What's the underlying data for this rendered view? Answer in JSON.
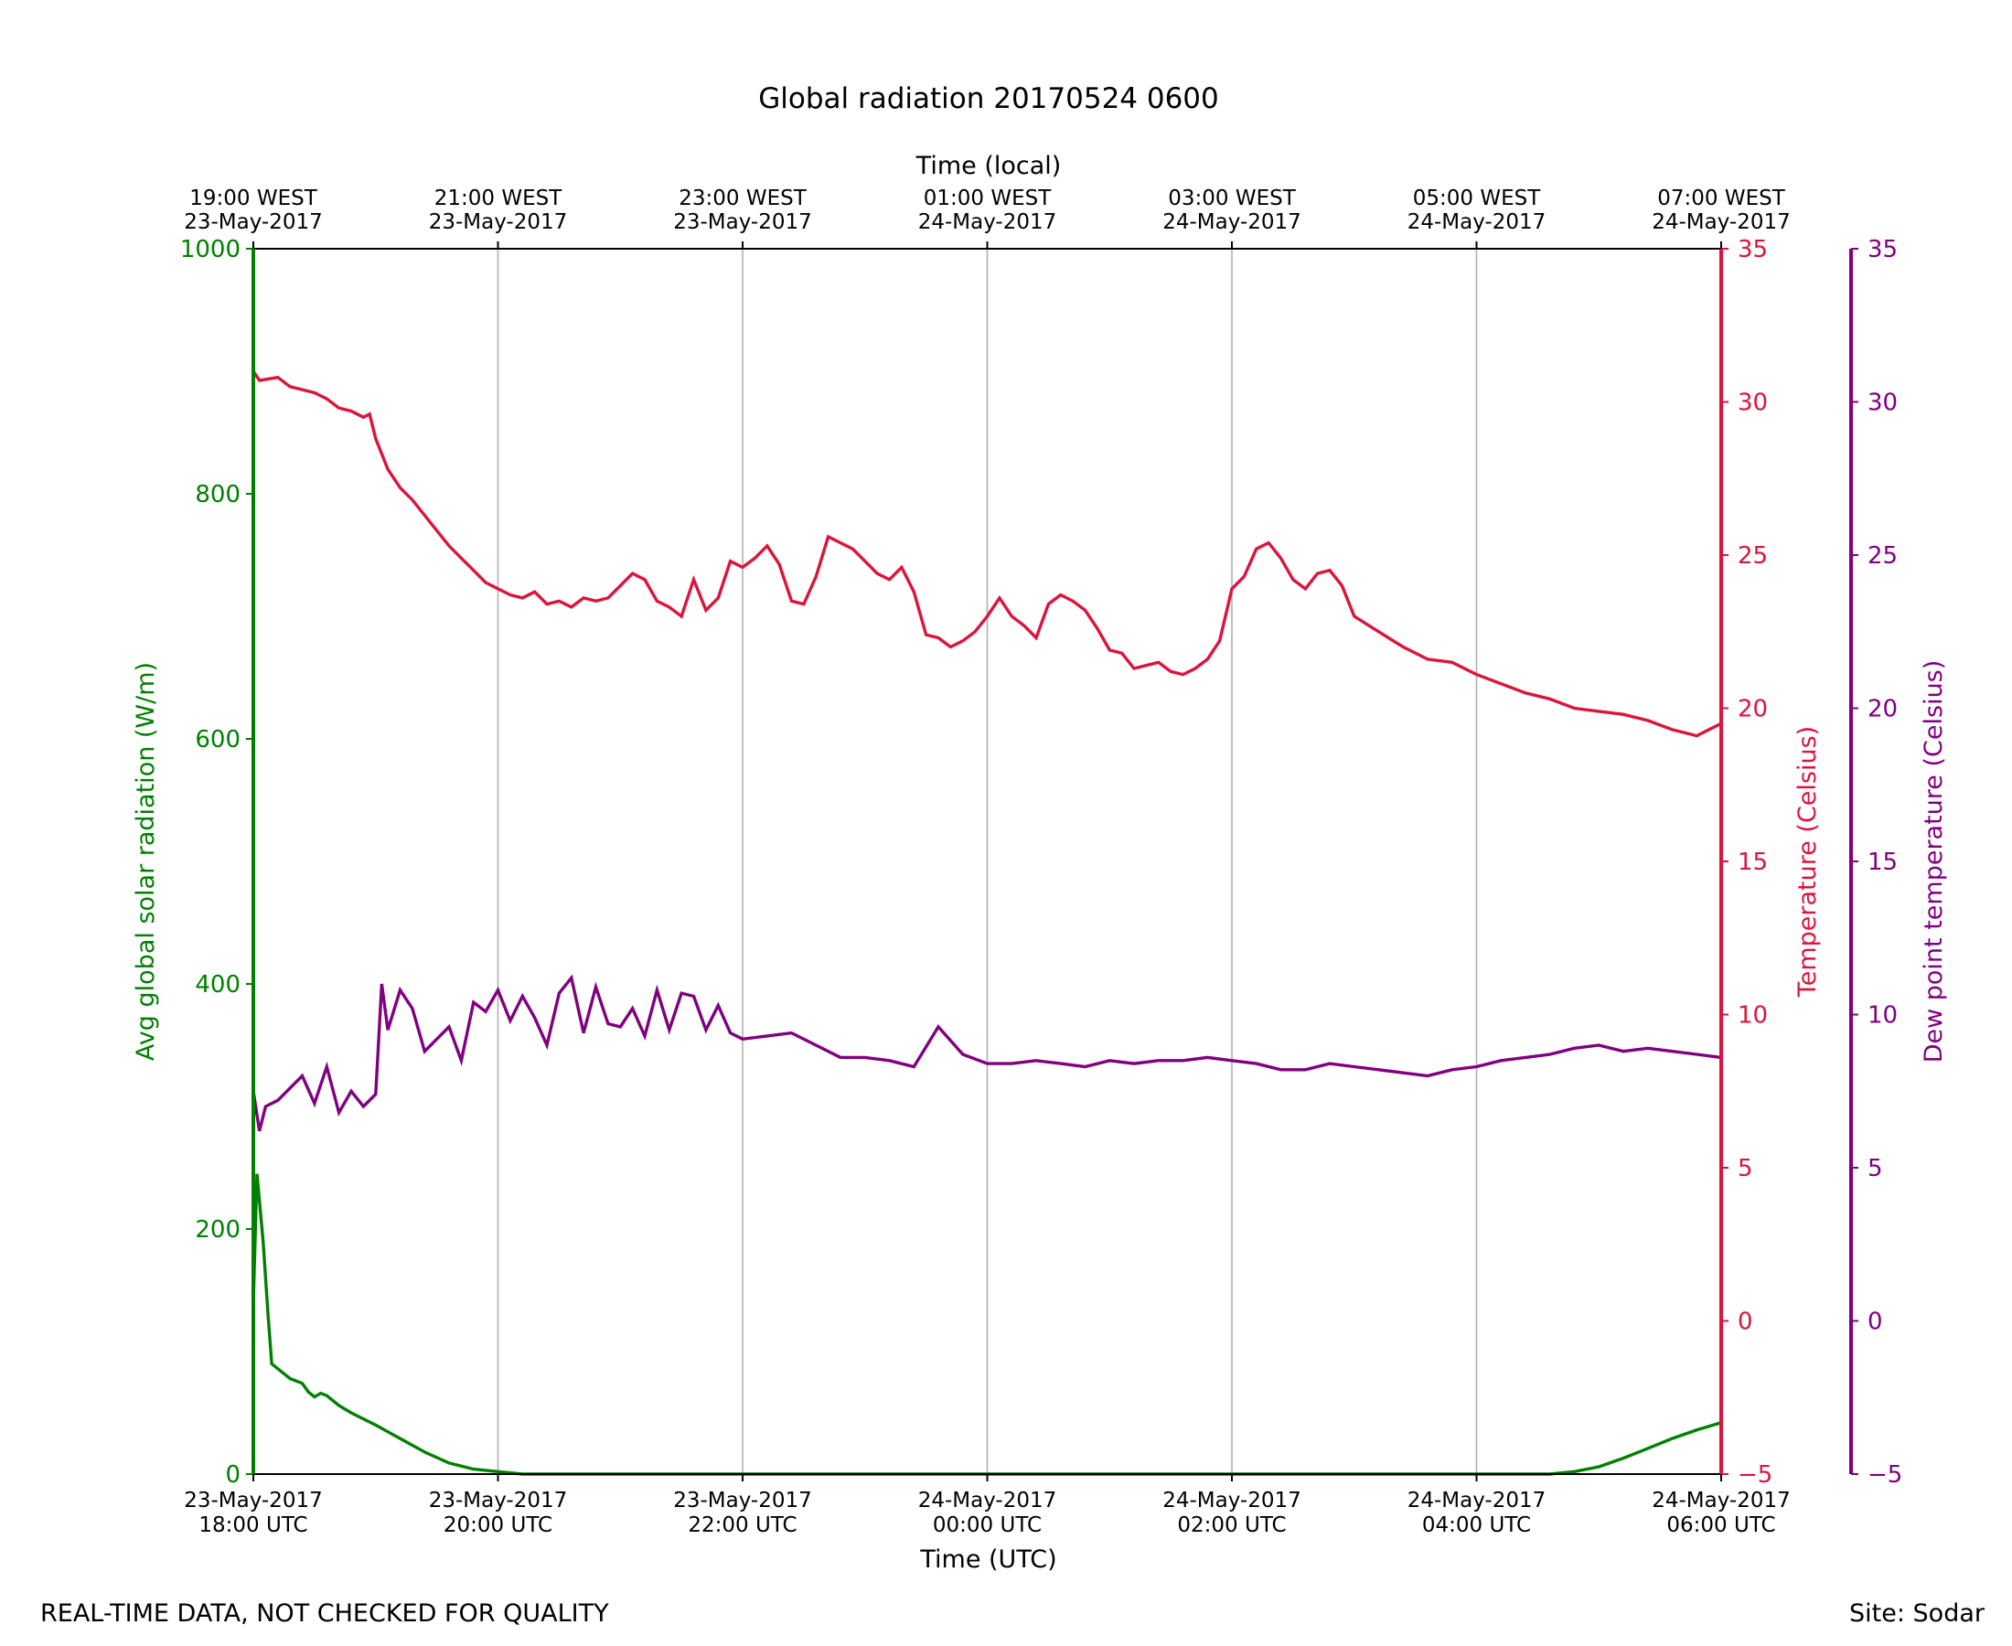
{
  "chart_data": {
    "type": "line",
    "title": "Global radiation 20170524 0600",
    "xlabel": "Time (UTC)",
    "x2label": "Time (local)",
    "xlim_hours": [
      0,
      12
    ],
    "x_ticks": [
      {
        "hour": 0,
        "utc_date": "23-May-2017",
        "utc_time": "18:00 UTC",
        "local_time": "19:00 WEST",
        "local_date": "23-May-2017"
      },
      {
        "hour": 2,
        "utc_date": "23-May-2017",
        "utc_time": "20:00 UTC",
        "local_time": "21:00 WEST",
        "local_date": "23-May-2017"
      },
      {
        "hour": 4,
        "utc_date": "23-May-2017",
        "utc_time": "22:00 UTC",
        "local_time": "23:00 WEST",
        "local_date": "23-May-2017"
      },
      {
        "hour": 6,
        "utc_date": "24-May-2017",
        "utc_time": "00:00 UTC",
        "local_time": "01:00 WEST",
        "local_date": "24-May-2017"
      },
      {
        "hour": 8,
        "utc_date": "24-May-2017",
        "utc_time": "02:00 UTC",
        "local_time": "03:00 WEST",
        "local_date": "24-May-2017"
      },
      {
        "hour": 10,
        "utc_date": "24-May-2017",
        "utc_time": "04:00 UTC",
        "local_time": "05:00 WEST",
        "local_date": "24-May-2017"
      },
      {
        "hour": 12,
        "utc_date": "24-May-2017",
        "utc_time": "06:00 UTC",
        "local_time": "07:00 WEST",
        "local_date": "24-May-2017"
      }
    ],
    "y_left": {
      "label": "Avg global solar radiation (W/m)",
      "ylim": [
        0,
        1000
      ],
      "ticks": [
        0,
        200,
        400,
        600,
        800,
        1000
      ],
      "color": "#008000"
    },
    "y_right": {
      "label": "Temperature (Celsius)",
      "ylim": [
        -5,
        35
      ],
      "ticks": [
        -5,
        0,
        5,
        10,
        15,
        20,
        25,
        30,
        35
      ],
      "color": "#dc143c"
    },
    "y_right2": {
      "label": "Dew point temperature (Celsius)",
      "ylim": [
        -5,
        35
      ],
      "ticks": [
        -5,
        0,
        5,
        10,
        15,
        20,
        25,
        30,
        35
      ],
      "color": "#800080"
    },
    "series": [
      {
        "name": "Global radiation",
        "axis": "left",
        "color": "#008000",
        "x": [
          0,
          0.03,
          0.08,
          0.12,
          0.15,
          0.3,
          0.4,
          0.45,
          0.5,
          0.55,
          0.6,
          0.65,
          0.7,
          0.75,
          0.8,
          1.0,
          1.2,
          1.4,
          1.6,
          1.8,
          2.0,
          2.2,
          2.5,
          3,
          4,
          5,
          6,
          7,
          8,
          9,
          10,
          10.6,
          10.8,
          11.0,
          11.2,
          11.4,
          11.6,
          11.8,
          12.0
        ],
        "values": [
          140,
          245,
          190,
          130,
          90,
          78,
          74,
          67,
          63,
          66,
          64,
          60,
          56,
          53,
          50,
          40,
          29,
          18,
          9,
          4,
          2,
          0,
          0,
          0,
          0,
          0,
          0,
          0,
          0,
          0,
          0,
          0,
          2,
          6,
          13,
          21,
          29,
          36,
          42
        ]
      },
      {
        "name": "Temperature",
        "axis": "right",
        "color": "#dc143c",
        "x": [
          0,
          0.05,
          0.2,
          0.3,
          0.4,
          0.5,
          0.6,
          0.7,
          0.8,
          0.9,
          0.95,
          1.0,
          1.1,
          1.2,
          1.3,
          1.4,
          1.5,
          1.6,
          1.7,
          1.8,
          1.9,
          2.0,
          2.1,
          2.2,
          2.3,
          2.4,
          2.5,
          2.6,
          2.7,
          2.8,
          2.9,
          3.0,
          3.1,
          3.2,
          3.3,
          3.4,
          3.5,
          3.6,
          3.7,
          3.8,
          3.9,
          4.0,
          4.1,
          4.2,
          4.3,
          4.4,
          4.5,
          4.6,
          4.7,
          4.8,
          4.9,
          5.0,
          5.1,
          5.2,
          5.3,
          5.4,
          5.5,
          5.6,
          5.7,
          5.8,
          5.9,
          6.0,
          6.1,
          6.2,
          6.3,
          6.4,
          6.5,
          6.6,
          6.7,
          6.8,
          6.9,
          7.0,
          7.1,
          7.2,
          7.3,
          7.4,
          7.5,
          7.6,
          7.7,
          7.8,
          7.9,
          8.0,
          8.1,
          8.2,
          8.3,
          8.4,
          8.5,
          8.6,
          8.7,
          8.8,
          8.9,
          9.0,
          9.2,
          9.4,
          9.6,
          9.8,
          10.0,
          10.2,
          10.4,
          10.6,
          10.8,
          11.0,
          11.2,
          11.4,
          11.6,
          11.8,
          12.0
        ],
        "values": [
          31.0,
          30.7,
          30.8,
          30.5,
          30.4,
          30.3,
          30.1,
          29.8,
          29.7,
          29.5,
          29.6,
          28.8,
          27.8,
          27.2,
          26.8,
          26.3,
          25.8,
          25.3,
          24.9,
          24.5,
          24.1,
          23.9,
          23.7,
          23.6,
          23.8,
          23.4,
          23.5,
          23.3,
          23.6,
          23.5,
          23.6,
          24.0,
          24.4,
          24.2,
          23.5,
          23.3,
          23.0,
          24.2,
          23.2,
          23.6,
          24.8,
          24.6,
          24.9,
          25.3,
          24.7,
          23.5,
          23.4,
          24.3,
          25.6,
          25.4,
          25.2,
          24.8,
          24.4,
          24.2,
          24.6,
          23.8,
          22.4,
          22.3,
          22.0,
          22.2,
          22.5,
          23.0,
          23.6,
          23.0,
          22.7,
          22.3,
          23.4,
          23.7,
          23.5,
          23.2,
          22.6,
          21.9,
          21.8,
          21.3,
          21.4,
          21.5,
          21.2,
          21.1,
          21.3,
          21.6,
          22.2,
          23.9,
          24.3,
          25.2,
          25.4,
          24.9,
          24.2,
          23.9,
          24.4,
          24.5,
          24.0,
          23.0,
          22.5,
          22.0,
          21.6,
          21.5,
          21.1,
          20.8,
          20.5,
          20.3,
          20.0,
          19.9,
          19.8,
          19.6,
          19.3,
          19.1,
          19.5
        ]
      },
      {
        "name": "Dew point temperature",
        "axis": "right2",
        "color": "#800080",
        "x": [
          0,
          0.05,
          0.1,
          0.2,
          0.3,
          0.4,
          0.5,
          0.6,
          0.7,
          0.8,
          0.9,
          1.0,
          1.05,
          1.1,
          1.2,
          1.3,
          1.4,
          1.5,
          1.6,
          1.7,
          1.8,
          1.9,
          2.0,
          2.1,
          2.2,
          2.3,
          2.4,
          2.5,
          2.6,
          2.7,
          2.8,
          2.9,
          3.0,
          3.1,
          3.2,
          3.3,
          3.4,
          3.5,
          3.6,
          3.7,
          3.8,
          3.9,
          4.0,
          4.2,
          4.4,
          4.6,
          4.8,
          5.0,
          5.2,
          5.4,
          5.6,
          5.8,
          6.0,
          6.2,
          6.4,
          6.6,
          6.8,
          7.0,
          7.2,
          7.4,
          7.6,
          7.8,
          8.0,
          8.2,
          8.4,
          8.6,
          8.8,
          9.0,
          9.2,
          9.4,
          9.6,
          9.8,
          10.0,
          10.2,
          10.4,
          10.6,
          10.8,
          11.0,
          11.2,
          11.4,
          11.6,
          11.8,
          12.0
        ],
        "values": [
          7.5,
          6.2,
          7.0,
          7.2,
          7.6,
          8.0,
          7.1,
          8.3,
          6.8,
          7.5,
          7.0,
          7.4,
          11.0,
          9.5,
          10.8,
          10.2,
          8.8,
          9.2,
          9.6,
          8.5,
          10.4,
          10.1,
          10.8,
          9.8,
          10.6,
          9.9,
          9.0,
          10.7,
          11.2,
          9.4,
          10.9,
          9.7,
          9.6,
          10.2,
          9.3,
          10.8,
          9.5,
          10.7,
          10.6,
          9.5,
          10.3,
          9.4,
          9.2,
          9.3,
          9.4,
          9.0,
          8.6,
          8.6,
          8.5,
          8.3,
          9.6,
          8.7,
          8.4,
          8.4,
          8.5,
          8.4,
          8.3,
          8.5,
          8.4,
          8.5,
          8.5,
          8.6,
          8.5,
          8.4,
          8.2,
          8.2,
          8.4,
          8.3,
          8.2,
          8.1,
          8.0,
          8.2,
          8.3,
          8.5,
          8.6,
          8.7,
          8.9,
          9.0,
          8.8,
          8.9,
          8.8,
          8.7,
          8.6
        ]
      }
    ],
    "gaps": [
      {
        "series": "Global radiation",
        "x_ranges": [
          [
            0.16,
            0.2
          ],
          [
            0.82,
            0.86
          ]
        ]
      },
      {
        "series": "Temperature",
        "x_ranges": [
          [
            2.8,
            2.9
          ],
          [
            4.4,
            4.5
          ],
          [
            5.7,
            5.75
          ],
          [
            6.55,
            6.6
          ],
          [
            8.2,
            8.25
          ],
          [
            9.0,
            9.05
          ],
          [
            9.45,
            9.5
          ]
        ]
      },
      {
        "series": "Dew point temperature",
        "x_ranges": [
          [
            2.9,
            2.95
          ],
          [
            3.1,
            3.15
          ],
          [
            4.05,
            4.1
          ],
          [
            8.05,
            8.1
          ],
          [
            9.3,
            9.35
          ]
        ]
      }
    ]
  },
  "footer": {
    "left_note": "REAL-TIME DATA, NOT CHECKED FOR QUALITY",
    "right_note": "Site: Sodar"
  }
}
